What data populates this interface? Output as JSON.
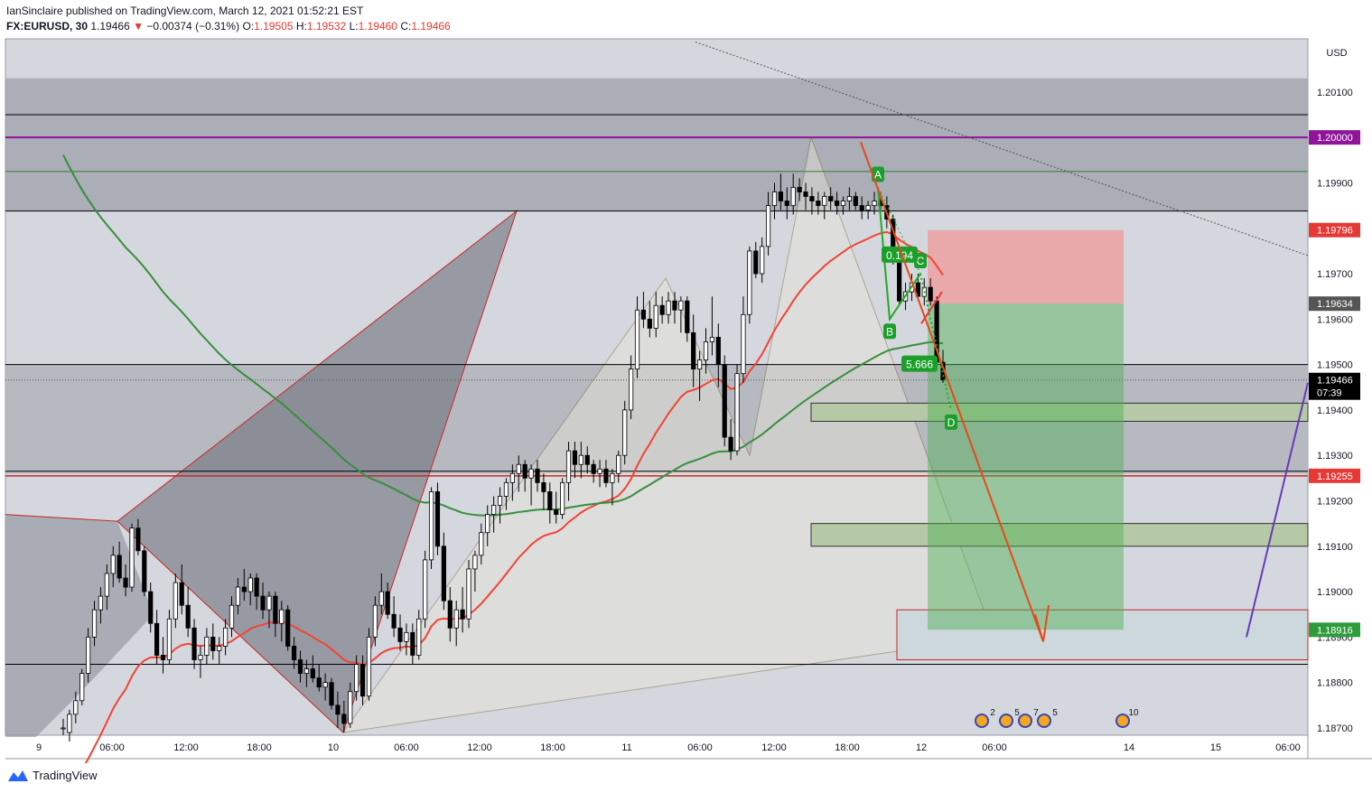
{
  "header": {
    "line1": "IanSinclaire published on TradingView.com, March 12, 2021 01:52:21 EST",
    "symbol": "FX:EURUSD, 30",
    "last": "1.19466",
    "change": "−0.00374 (−0.31%)",
    "o_label": "O:",
    "o": "1.19505",
    "h_label": "H:",
    "h": "1.19532",
    "l_label": "L:",
    "l": "1.19460",
    "c_label": "C:",
    "c": "1.19466"
  },
  "footer": {
    "brand": "TradingView"
  },
  "colors": {
    "up": "#ffffff",
    "down": "#000000",
    "resistance": "#8e1599",
    "ema_red": "#f44336",
    "ma_green": "#388e3c",
    "harmonic_green": "#22ab22",
    "profit_zone": "#4caf50",
    "loss_zone": "#ef9a9a",
    "price_label": "#000000"
  },
  "chart_data": {
    "type": "candlestick",
    "symbol": "FX:EURUSD",
    "timeframe": "30",
    "y_unit": "USD",
    "ylim": [
      1.18684,
      1.20217
    ],
    "y_ticks": [
      "1.20100",
      "1.20000",
      "1.19900",
      "1.19700",
      "1.19600",
      "1.19500",
      "1.19400",
      "1.19300",
      "1.19200",
      "1.19100",
      "1.19000",
      "1.18900",
      "1.18800",
      "1.18700"
    ],
    "x_ticks": [
      "9",
      "06:00",
      "12:00",
      "18:00",
      "10",
      "06:00",
      "12:00",
      "18:00",
      "11",
      "06:00",
      "12:00",
      "18:00",
      "12",
      "06:00",
      "14",
      "15",
      "06:00"
    ],
    "current_price": "1.19466",
    "countdown": "07:39",
    "price_labels": [
      {
        "value": "1.20000",
        "color": "#8e1599"
      },
      {
        "value": "1.19796",
        "color": "#e53935"
      },
      {
        "value": "1.19634",
        "color": "#555555"
      },
      {
        "value": "1.19255",
        "color": "#e53935"
      },
      {
        "value": "1.18916",
        "color": "#2e9c3a"
      }
    ],
    "harmonic_points": [
      {
        "label": "A",
        "price": 1.1989
      },
      {
        "label": "B",
        "price": 1.196
      },
      {
        "label": "C",
        "price": 1.197
      },
      {
        "label": "D",
        "price": 1.194
      }
    ],
    "ratio_labels": [
      "0.194",
      "5.666"
    ],
    "horizontal_levels": [
      1.2005,
      1.2,
      1.19925,
      1.19838,
      1.195,
      1.1926,
      1.1884
    ],
    "position": {
      "entry": 1.19634,
      "stop": 1.19796,
      "target": 1.18916
    },
    "candles": [
      {
        "o": 1.187,
        "h": 1.1872,
        "l": 1.18684,
        "c": 1.187
      },
      {
        "o": 1.1869,
        "h": 1.1874,
        "l": 1.1867,
        "c": 1.1873
      },
      {
        "o": 1.1873,
        "h": 1.1878,
        "l": 1.1871,
        "c": 1.1876
      },
      {
        "o": 1.1876,
        "h": 1.1883,
        "l": 1.1875,
        "c": 1.1882
      },
      {
        "o": 1.1882,
        "h": 1.1892,
        "l": 1.188,
        "c": 1.189
      },
      {
        "o": 1.189,
        "h": 1.1898,
        "l": 1.1888,
        "c": 1.1896
      },
      {
        "o": 1.1896,
        "h": 1.1901,
        "l": 1.1893,
        "c": 1.1899
      },
      {
        "o": 1.1899,
        "h": 1.1906,
        "l": 1.1896,
        "c": 1.1904
      },
      {
        "o": 1.1904,
        "h": 1.191,
        "l": 1.1901,
        "c": 1.1908
      },
      {
        "o": 1.1908,
        "h": 1.1911,
        "l": 1.1902,
        "c": 1.1903
      },
      {
        "o": 1.1903,
        "h": 1.1906,
        "l": 1.1899,
        "c": 1.1901
      },
      {
        "o": 1.1901,
        "h": 1.1915,
        "l": 1.19,
        "c": 1.1914
      },
      {
        "o": 1.1914,
        "h": 1.1916,
        "l": 1.1908,
        "c": 1.1909
      },
      {
        "o": 1.1909,
        "h": 1.191,
        "l": 1.1899,
        "c": 1.19
      },
      {
        "o": 1.19,
        "h": 1.1902,
        "l": 1.1891,
        "c": 1.1893
      },
      {
        "o": 1.1893,
        "h": 1.1896,
        "l": 1.1884,
        "c": 1.1886
      },
      {
        "o": 1.1886,
        "h": 1.189,
        "l": 1.1882,
        "c": 1.1885
      },
      {
        "o": 1.1885,
        "h": 1.1896,
        "l": 1.1884,
        "c": 1.1894
      },
      {
        "o": 1.1894,
        "h": 1.1904,
        "l": 1.1892,
        "c": 1.1902
      },
      {
        "o": 1.1902,
        "h": 1.1906,
        "l": 1.1895,
        "c": 1.1897
      },
      {
        "o": 1.1897,
        "h": 1.1901,
        "l": 1.189,
        "c": 1.1892
      },
      {
        "o": 1.1892,
        "h": 1.1894,
        "l": 1.1883,
        "c": 1.1885
      },
      {
        "o": 1.1885,
        "h": 1.1888,
        "l": 1.1881,
        "c": 1.1886
      },
      {
        "o": 1.1886,
        "h": 1.1892,
        "l": 1.1884,
        "c": 1.189
      },
      {
        "o": 1.189,
        "h": 1.1893,
        "l": 1.1885,
        "c": 1.1887
      },
      {
        "o": 1.1887,
        "h": 1.189,
        "l": 1.1884,
        "c": 1.1888
      },
      {
        "o": 1.1888,
        "h": 1.1894,
        "l": 1.1886,
        "c": 1.1892
      },
      {
        "o": 1.1892,
        "h": 1.1899,
        "l": 1.189,
        "c": 1.1897
      },
      {
        "o": 1.1897,
        "h": 1.1903,
        "l": 1.1895,
        "c": 1.1901
      },
      {
        "o": 1.1901,
        "h": 1.1905,
        "l": 1.1898,
        "c": 1.19
      },
      {
        "o": 1.19,
        "h": 1.1904,
        "l": 1.1897,
        "c": 1.1903
      },
      {
        "o": 1.1903,
        "h": 1.1904,
        "l": 1.1896,
        "c": 1.1899
      },
      {
        "o": 1.1899,
        "h": 1.1902,
        "l": 1.1894,
        "c": 1.1896
      },
      {
        "o": 1.1896,
        "h": 1.19,
        "l": 1.1892,
        "c": 1.1899
      },
      {
        "o": 1.1899,
        "h": 1.19,
        "l": 1.189,
        "c": 1.1893
      },
      {
        "o": 1.1893,
        "h": 1.1898,
        "l": 1.1889,
        "c": 1.1896
      },
      {
        "o": 1.1896,
        "h": 1.1897,
        "l": 1.1887,
        "c": 1.1888
      },
      {
        "o": 1.1888,
        "h": 1.189,
        "l": 1.1883,
        "c": 1.1885
      },
      {
        "o": 1.1885,
        "h": 1.1887,
        "l": 1.188,
        "c": 1.1882
      },
      {
        "o": 1.1882,
        "h": 1.1885,
        "l": 1.1879,
        "c": 1.1883
      },
      {
        "o": 1.1883,
        "h": 1.1886,
        "l": 1.188,
        "c": 1.1881
      },
      {
        "o": 1.1881,
        "h": 1.1884,
        "l": 1.1878,
        "c": 1.1879
      },
      {
        "o": 1.1879,
        "h": 1.1882,
        "l": 1.1876,
        "c": 1.188
      },
      {
        "o": 1.188,
        "h": 1.1881,
        "l": 1.1874,
        "c": 1.1875
      },
      {
        "o": 1.1875,
        "h": 1.1878,
        "l": 1.187,
        "c": 1.1873
      },
      {
        "o": 1.1873,
        "h": 1.1876,
        "l": 1.1869,
        "c": 1.1871
      },
      {
        "o": 1.1871,
        "h": 1.188,
        "l": 1.187,
        "c": 1.1878
      },
      {
        "o": 1.1878,
        "h": 1.1886,
        "l": 1.1876,
        "c": 1.1884
      },
      {
        "o": 1.1884,
        "h": 1.1886,
        "l": 1.1875,
        "c": 1.1877
      },
      {
        "o": 1.1877,
        "h": 1.1892,
        "l": 1.1876,
        "c": 1.189
      },
      {
        "o": 1.189,
        "h": 1.1899,
        "l": 1.1888,
        "c": 1.1897
      },
      {
        "o": 1.1897,
        "h": 1.1904,
        "l": 1.1895,
        "c": 1.19
      },
      {
        "o": 1.19,
        "h": 1.1902,
        "l": 1.1894,
        "c": 1.1895
      },
      {
        "o": 1.1895,
        "h": 1.1899,
        "l": 1.189,
        "c": 1.1892
      },
      {
        "o": 1.1892,
        "h": 1.1895,
        "l": 1.1887,
        "c": 1.1889
      },
      {
        "o": 1.1889,
        "h": 1.1893,
        "l": 1.1886,
        "c": 1.1891
      },
      {
        "o": 1.1891,
        "h": 1.1893,
        "l": 1.1884,
        "c": 1.1886
      },
      {
        "o": 1.1886,
        "h": 1.1896,
        "l": 1.1885,
        "c": 1.1894
      },
      {
        "o": 1.1894,
        "h": 1.1909,
        "l": 1.1892,
        "c": 1.1907
      },
      {
        "o": 1.1907,
        "h": 1.1923,
        "l": 1.1905,
        "c": 1.1922
      },
      {
        "o": 1.1922,
        "h": 1.1924,
        "l": 1.1908,
        "c": 1.191
      },
      {
        "o": 1.191,
        "h": 1.1913,
        "l": 1.1896,
        "c": 1.1898
      },
      {
        "o": 1.1898,
        "h": 1.1901,
        "l": 1.1889,
        "c": 1.1892
      },
      {
        "o": 1.1892,
        "h": 1.1898,
        "l": 1.1888,
        "c": 1.1896
      },
      {
        "o": 1.1896,
        "h": 1.1901,
        "l": 1.1891,
        "c": 1.1894
      },
      {
        "o": 1.1894,
        "h": 1.1907,
        "l": 1.1892,
        "c": 1.1905
      },
      {
        "o": 1.1905,
        "h": 1.1909,
        "l": 1.19,
        "c": 1.1908
      },
      {
        "o": 1.1908,
        "h": 1.1915,
        "l": 1.1906,
        "c": 1.1913
      },
      {
        "o": 1.1913,
        "h": 1.1919,
        "l": 1.191,
        "c": 1.1917
      },
      {
        "o": 1.1917,
        "h": 1.1921,
        "l": 1.1913,
        "c": 1.1919
      },
      {
        "o": 1.1919,
        "h": 1.1923,
        "l": 1.1915,
        "c": 1.1921
      },
      {
        "o": 1.1921,
        "h": 1.1925,
        "l": 1.1918,
        "c": 1.1924
      },
      {
        "o": 1.1924,
        "h": 1.1928,
        "l": 1.192,
        "c": 1.1926
      },
      {
        "o": 1.1926,
        "h": 1.193,
        "l": 1.1922,
        "c": 1.1928
      },
      {
        "o": 1.1928,
        "h": 1.1929,
        "l": 1.1922,
        "c": 1.1925
      },
      {
        "o": 1.1925,
        "h": 1.1928,
        "l": 1.1919,
        "c": 1.1927
      },
      {
        "o": 1.1927,
        "h": 1.1929,
        "l": 1.1922,
        "c": 1.1924
      },
      {
        "o": 1.1924,
        "h": 1.1926,
        "l": 1.1918,
        "c": 1.1922
      },
      {
        "o": 1.1922,
        "h": 1.1924,
        "l": 1.1915,
        "c": 1.1918
      },
      {
        "o": 1.1918,
        "h": 1.1922,
        "l": 1.1915,
        "c": 1.1917
      },
      {
        "o": 1.1917,
        "h": 1.1925,
        "l": 1.1916,
        "c": 1.1924
      },
      {
        "o": 1.1924,
        "h": 1.1933,
        "l": 1.192,
        "c": 1.1931
      },
      {
        "o": 1.1931,
        "h": 1.1933,
        "l": 1.1925,
        "c": 1.1928
      },
      {
        "o": 1.1928,
        "h": 1.1933,
        "l": 1.1925,
        "c": 1.193
      },
      {
        "o": 1.193,
        "h": 1.1932,
        "l": 1.1926,
        "c": 1.1928
      },
      {
        "o": 1.1928,
        "h": 1.1929,
        "l": 1.1924,
        "c": 1.1926
      },
      {
        "o": 1.1926,
        "h": 1.1929,
        "l": 1.1923,
        "c": 1.1927
      },
      {
        "o": 1.1927,
        "h": 1.1929,
        "l": 1.1923,
        "c": 1.1924
      },
      {
        "o": 1.1924,
        "h": 1.1927,
        "l": 1.1919,
        "c": 1.1926
      },
      {
        "o": 1.1926,
        "h": 1.1931,
        "l": 1.1924,
        "c": 1.193
      },
      {
        "o": 1.193,
        "h": 1.1942,
        "l": 1.1928,
        "c": 1.194
      },
      {
        "o": 1.194,
        "h": 1.1952,
        "l": 1.1938,
        "c": 1.1949
      },
      {
        "o": 1.1949,
        "h": 1.1965,
        "l": 1.1947,
        "c": 1.1962
      },
      {
        "o": 1.1962,
        "h": 1.1966,
        "l": 1.1958,
        "c": 1.196
      },
      {
        "o": 1.196,
        "h": 1.1964,
        "l": 1.1956,
        "c": 1.1958
      },
      {
        "o": 1.1958,
        "h": 1.1966,
        "l": 1.1956,
        "c": 1.1963
      },
      {
        "o": 1.1963,
        "h": 1.1965,
        "l": 1.1959,
        "c": 1.1961
      },
      {
        "o": 1.1961,
        "h": 1.1966,
        "l": 1.1959,
        "c": 1.1964
      },
      {
        "o": 1.1964,
        "h": 1.1966,
        "l": 1.1959,
        "c": 1.1962
      },
      {
        "o": 1.1962,
        "h": 1.1965,
        "l": 1.1957,
        "c": 1.1964
      },
      {
        "o": 1.1964,
        "h": 1.1965,
        "l": 1.1955,
        "c": 1.1957
      },
      {
        "o": 1.1957,
        "h": 1.1961,
        "l": 1.1945,
        "c": 1.1949
      },
      {
        "o": 1.1949,
        "h": 1.1953,
        "l": 1.1942,
        "c": 1.1951
      },
      {
        "o": 1.1951,
        "h": 1.1958,
        "l": 1.1948,
        "c": 1.1955
      },
      {
        "o": 1.1955,
        "h": 1.1965,
        "l": 1.1952,
        "c": 1.1956
      },
      {
        "o": 1.1956,
        "h": 1.1959,
        "l": 1.1945,
        "c": 1.195
      },
      {
        "o": 1.195,
        "h": 1.1952,
        "l": 1.1932,
        "c": 1.1934
      },
      {
        "o": 1.1934,
        "h": 1.1938,
        "l": 1.1929,
        "c": 1.1931
      },
      {
        "o": 1.1931,
        "h": 1.195,
        "l": 1.193,
        "c": 1.1948
      },
      {
        "o": 1.1948,
        "h": 1.1965,
        "l": 1.1946,
        "c": 1.1961
      },
      {
        "o": 1.1961,
        "h": 1.1976,
        "l": 1.1959,
        "c": 1.1975
      },
      {
        "o": 1.1975,
        "h": 1.1977,
        "l": 1.1969,
        "c": 1.197
      },
      {
        "o": 1.197,
        "h": 1.1978,
        "l": 1.1968,
        "c": 1.1976
      },
      {
        "o": 1.1976,
        "h": 1.1988,
        "l": 1.1974,
        "c": 1.1985
      },
      {
        "o": 1.1985,
        "h": 1.199,
        "l": 1.1982,
        "c": 1.1988
      },
      {
        "o": 1.1988,
        "h": 1.1992,
        "l": 1.1984,
        "c": 1.1986
      },
      {
        "o": 1.1986,
        "h": 1.1989,
        "l": 1.1982,
        "c": 1.1985
      },
      {
        "o": 1.1985,
        "h": 1.1992,
        "l": 1.1983,
        "c": 1.1989
      },
      {
        "o": 1.1989,
        "h": 1.1991,
        "l": 1.1986,
        "c": 1.1988
      },
      {
        "o": 1.1988,
        "h": 1.199,
        "l": 1.1984,
        "c": 1.1987
      },
      {
        "o": 1.1987,
        "h": 1.1989,
        "l": 1.1983,
        "c": 1.1986
      },
      {
        "o": 1.1986,
        "h": 1.1988,
        "l": 1.1983,
        "c": 1.1985
      },
      {
        "o": 1.1985,
        "h": 1.1988,
        "l": 1.1982,
        "c": 1.1987
      },
      {
        "o": 1.1987,
        "h": 1.1989,
        "l": 1.1984,
        "c": 1.1986
      },
      {
        "o": 1.1986,
        "h": 1.1988,
        "l": 1.1983,
        "c": 1.1985
      },
      {
        "o": 1.1985,
        "h": 1.1987,
        "l": 1.1983,
        "c": 1.1986
      },
      {
        "o": 1.1986,
        "h": 1.1989,
        "l": 1.1984,
        "c": 1.1987
      },
      {
        "o": 1.1987,
        "h": 1.1988,
        "l": 1.1984,
        "c": 1.1985
      },
      {
        "o": 1.1985,
        "h": 1.1987,
        "l": 1.1982,
        "c": 1.1984
      },
      {
        "o": 1.1984,
        "h": 1.1986,
        "l": 1.1982,
        "c": 1.1985
      },
      {
        "o": 1.1985,
        "h": 1.1988,
        "l": 1.1983,
        "c": 1.1986
      },
      {
        "o": 1.1986,
        "h": 1.1988,
        "l": 1.1983,
        "c": 1.1985
      },
      {
        "o": 1.1985,
        "h": 1.1987,
        "l": 1.198,
        "c": 1.1982
      },
      {
        "o": 1.1982,
        "h": 1.1983,
        "l": 1.1972,
        "c": 1.1973
      },
      {
        "o": 1.1973,
        "h": 1.1974,
        "l": 1.1963,
        "c": 1.1964
      },
      {
        "o": 1.1964,
        "h": 1.1968,
        "l": 1.1962,
        "c": 1.1966
      },
      {
        "o": 1.1966,
        "h": 1.197,
        "l": 1.1964,
        "c": 1.1968
      },
      {
        "o": 1.1968,
        "h": 1.197,
        "l": 1.1964,
        "c": 1.1965
      },
      {
        "o": 1.1965,
        "h": 1.1969,
        "l": 1.1963,
        "c": 1.1967
      },
      {
        "o": 1.1967,
        "h": 1.1969,
        "l": 1.1963,
        "c": 1.1964
      },
      {
        "o": 1.1964,
        "h": 1.1965,
        "l": 1.195,
        "c": 1.19505
      },
      {
        "o": 1.19505,
        "h": 1.19532,
        "l": 1.1946,
        "c": 1.19466
      }
    ]
  }
}
